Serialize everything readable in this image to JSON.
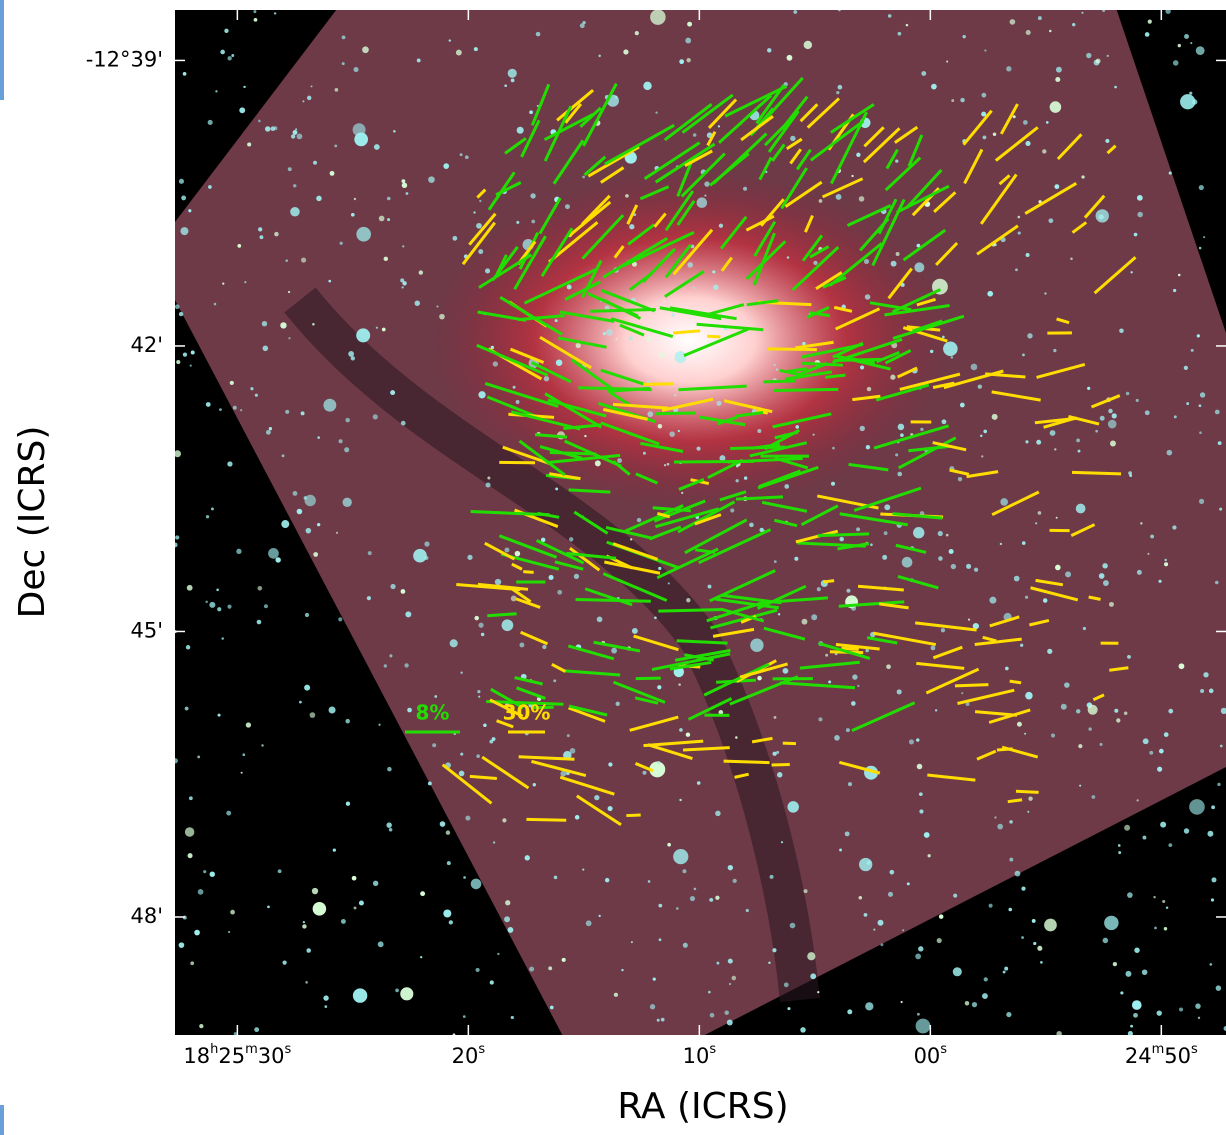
{
  "chart_data": {
    "type": "image",
    "xlabel": "RA (ICRS)",
    "ylabel": "Dec (ICRS)",
    "xlim": [
      92.7,
      47.2
    ],
    "xticks": [
      {
        "value": 90,
        "label": "18h25m30s"
      },
      {
        "value": 80,
        "label": "20s"
      },
      {
        "value": 70,
        "label": "10s"
      },
      {
        "value": 60,
        "label": "00s"
      },
      {
        "value": 50,
        "label": "24m50s"
      }
    ],
    "ylim": [
      38.47,
      49.24
    ],
    "yticks": [
      {
        "value": 39,
        "label": "-12°39'"
      },
      {
        "value": 42,
        "label": "42'"
      },
      {
        "value": 45,
        "label": "45'"
      },
      {
        "value": 48,
        "label": "48'"
      }
    ],
    "legend": [
      {
        "label": "8%",
        "color": "#22dd00"
      },
      {
        "label": "30%",
        "color": "#ffdd00"
      }
    ]
  }
}
